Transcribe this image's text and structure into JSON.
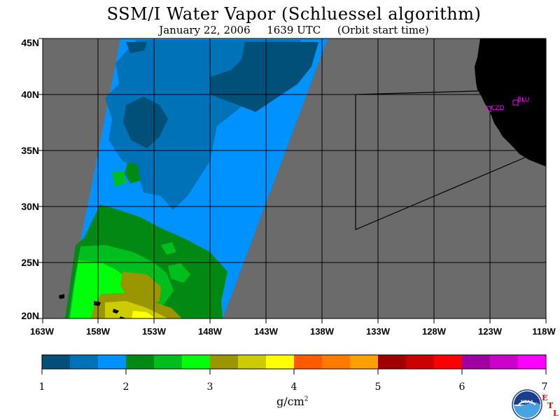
{
  "header": {
    "title": "SSM/I Water Vapor (Schluessel algorithm)",
    "date": "January 22, 2006",
    "time": "1639 UTC",
    "note": "(Orbit start time)"
  },
  "map": {
    "lon_labels": [
      "163W",
      "158W",
      "153W",
      "148W",
      "143W",
      "138W",
      "133W",
      "128W",
      "123W",
      "118W"
    ],
    "lat_labels": [
      "45N",
      "40N",
      "35N",
      "30N",
      "25N",
      "20N"
    ],
    "lon_range": [
      -163,
      -118
    ],
    "lat_range": [
      20,
      45
    ],
    "stations": [
      {
        "label": "CZD"
      },
      {
        "label": "BLU"
      }
    ],
    "colors": {
      "no_data": "#6b6b6b",
      "land": "#000000",
      "grid": "#000000",
      "station": "#ff00ff"
    }
  },
  "colorbar": {
    "tick_labels": [
      "1",
      "2",
      "3",
      "4",
      "5",
      "6",
      "7"
    ],
    "range": [
      1,
      7
    ],
    "colors": [
      "#00507a",
      "#0072b8",
      "#0092ff",
      "#008a14",
      "#00be1e",
      "#00ff0a",
      "#9a9600",
      "#cccc00",
      "#ffff00",
      "#ff5a00",
      "#ff7a00",
      "#ffa000",
      "#a00000",
      "#cc0000",
      "#ff0000",
      "#a000a0",
      "#cc00cc",
      "#ff00ff"
    ],
    "units": "g/cm",
    "units_exp": "2"
  },
  "logo": {
    "noaa_text": "NOAA",
    "etl": [
      "E",
      "T",
      "L"
    ]
  }
}
